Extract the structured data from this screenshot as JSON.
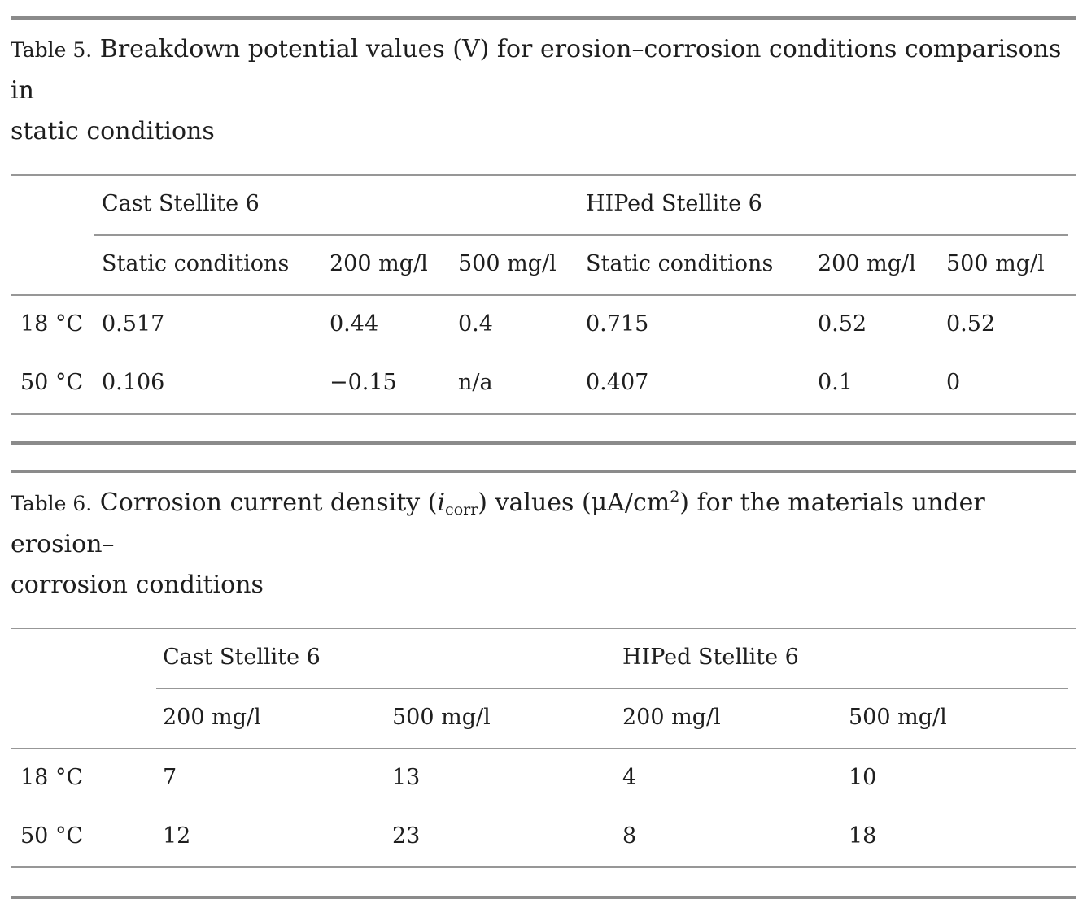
{
  "page": {
    "text_color": "#1e1e1e",
    "rule_color_thick": "#8b8b8b",
    "rule_color_thin": "#979797"
  },
  "table5": {
    "label": "Table 5.",
    "title_line1": "Breakdown potential values (V) for erosion–corrosion conditions comparisons in",
    "title_line2": "static conditions",
    "group_headers": [
      "Cast Stellite 6",
      "HIPed Stellite 6"
    ],
    "col_headers": [
      "Static conditions",
      "200 mg/l",
      "500 mg/l",
      "Static conditions",
      "200 mg/l",
      "500 mg/l"
    ],
    "rows": [
      {
        "label": "18 °C",
        "values": [
          "0.517",
          "0.44",
          "0.4",
          "0.715",
          "0.52",
          "0.52"
        ]
      },
      {
        "label": "50 °C",
        "values": [
          "0.106",
          "−0.15",
          "n/a",
          "0.407",
          "0.1",
          "0"
        ]
      }
    ]
  },
  "table6": {
    "label": "Table 6.",
    "title_t1": "Corrosion current density (",
    "title_i": "i",
    "title_sub": "corr",
    "title_t2": ") values (μA/cm",
    "title_sup": "2",
    "title_t3": ") for the materials under erosion–",
    "title_line2": "corrosion conditions",
    "group_headers": [
      "Cast Stellite 6",
      "HIPed Stellite 6"
    ],
    "col_headers": [
      "200 mg/l",
      "500 mg/l",
      "200 mg/l",
      "500 mg/l"
    ],
    "rows": [
      {
        "label": "18 °C",
        "values": [
          "7",
          "13",
          "4",
          "10"
        ]
      },
      {
        "label": "50 °C",
        "values": [
          "12",
          "23",
          "8",
          "18"
        ]
      }
    ]
  }
}
